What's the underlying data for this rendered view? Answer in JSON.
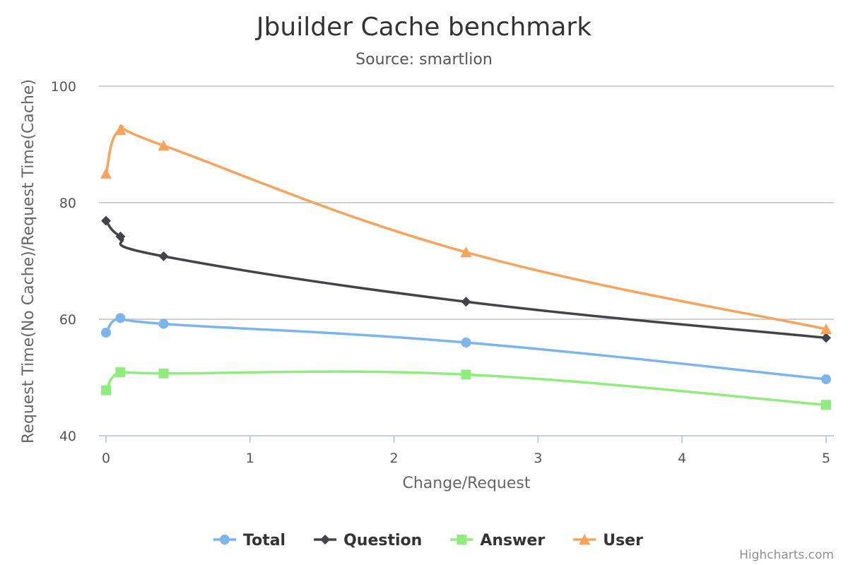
{
  "chart_data": {
    "type": "line",
    "title": "Jbuilder Cache benchmark",
    "subtitle": "Source: smartlion",
    "xlabel": "Change/Request",
    "ylabel": "Request Time(No Cache)/Request Time(Cache)",
    "xlim": [
      0,
      5
    ],
    "ylim": [
      40,
      100
    ],
    "x_ticks": [
      "0",
      "1",
      "2",
      "3",
      "4",
      "5"
    ],
    "y_ticks": [
      "40",
      "60",
      "80",
      "100"
    ],
    "grid": true,
    "legend_position": "bottom",
    "x": [
      0,
      0.1,
      0.4,
      2.5,
      5
    ],
    "series": [
      {
        "name": "Total",
        "color": "#7cb5ec",
        "marker": "circle",
        "values": [
          57.7,
          60.2,
          59.2,
          56.0,
          49.7
        ]
      },
      {
        "name": "Question",
        "color": "#434348",
        "marker": "diamond",
        "values": [
          76.9,
          74.2,
          70.8,
          63.0,
          56.8
        ]
      },
      {
        "name": "Answer",
        "color": "#90ed7d",
        "marker": "square",
        "values": [
          47.8,
          50.9,
          50.7,
          50.5,
          45.3
        ]
      },
      {
        "name": "User",
        "color": "#f7a35c",
        "marker": "triangle",
        "values": [
          85.0,
          92.5,
          89.8,
          71.5,
          58.3
        ]
      }
    ]
  },
  "credits": "Highcharts.com"
}
